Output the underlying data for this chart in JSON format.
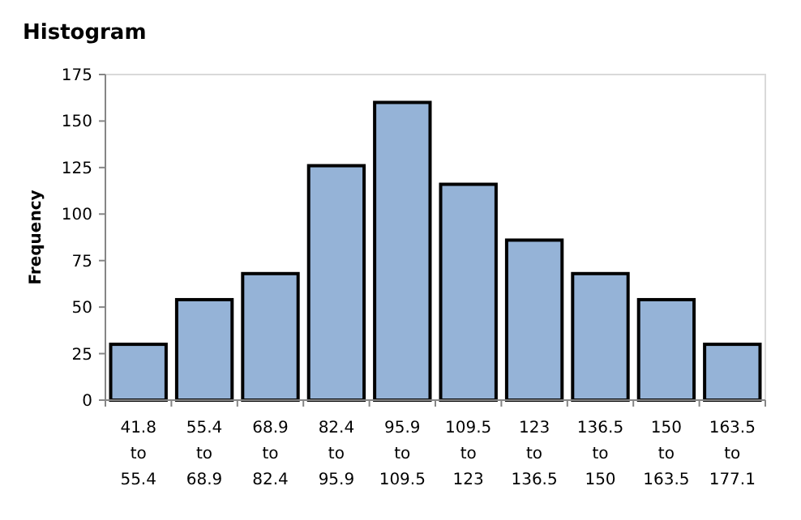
{
  "chart_data": {
    "type": "bar",
    "title": "Histogram",
    "ylabel": "Frequency",
    "categories": [
      "41.8 to 55.4",
      "55.4 to 68.9",
      "68.9 to 82.4",
      "82.4 to 95.9",
      "95.9 to 109.5",
      "109.5 to 123",
      "123 to 136.5",
      "136.5 to 150",
      "150 to 163.5",
      "163.5 to 177.1"
    ],
    "values": [
      30,
      54,
      68,
      126,
      160,
      116,
      86,
      68,
      54,
      30
    ],
    "color": "#95b3d7",
    "ylim": [
      0,
      175
    ],
    "yticks": [
      0,
      25,
      50,
      75,
      100,
      125,
      150,
      175
    ],
    "grid": false
  }
}
